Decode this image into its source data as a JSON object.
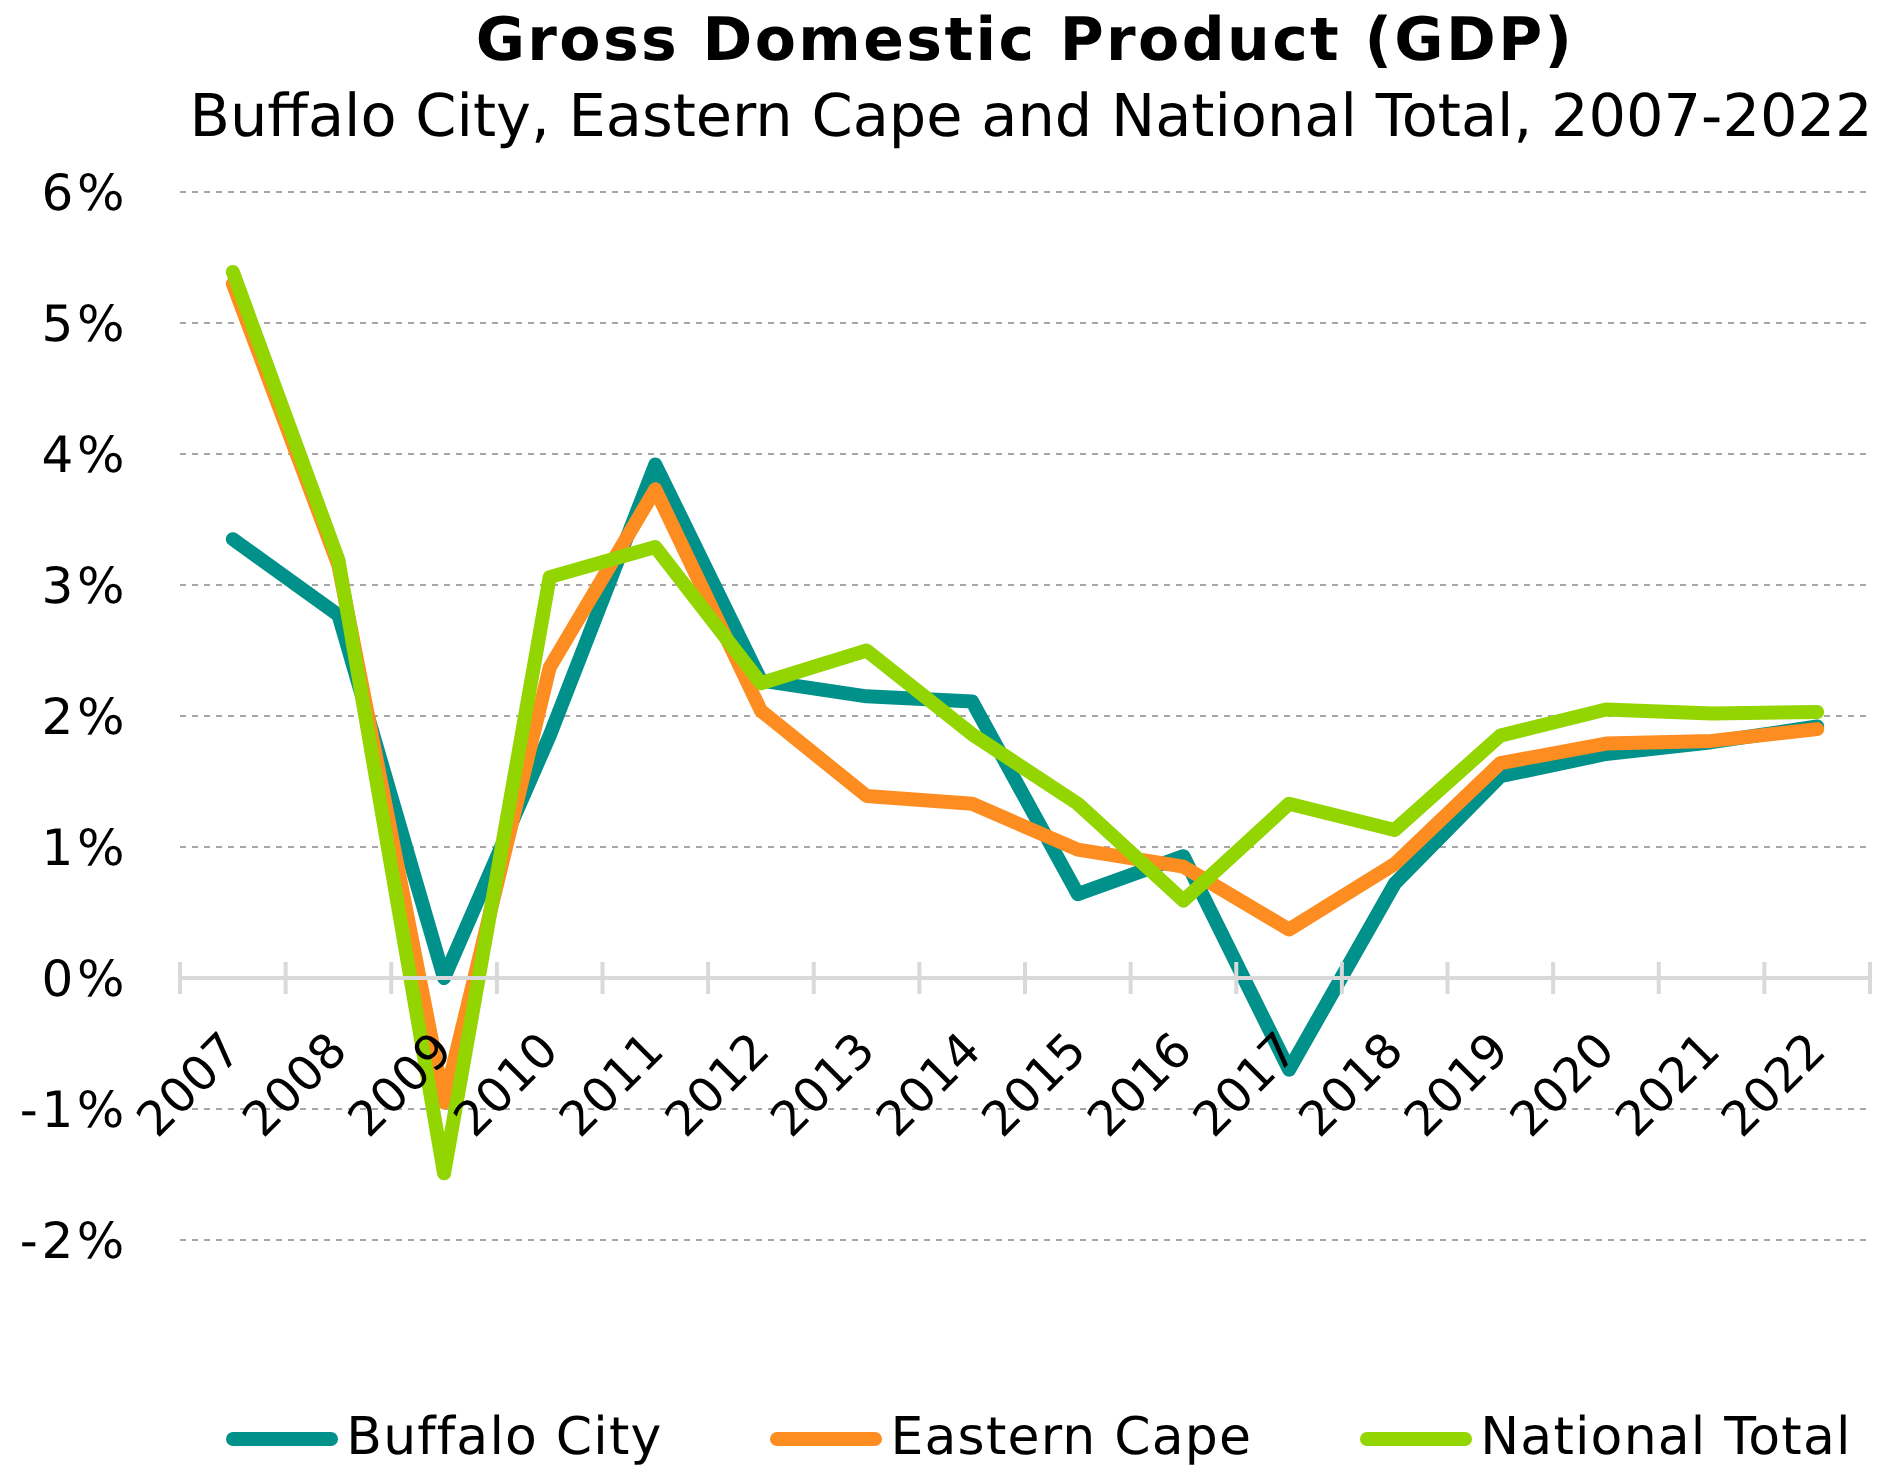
{
  "chart_data": {
    "type": "line",
    "title": "Gross Domestic Product (GDP)",
    "subtitle": "Buffalo City, Eastern Cape and National Total, 2007-2022",
    "categories": [
      "2007",
      "2008",
      "2009",
      "2010",
      "2011",
      "2012",
      "2013",
      "2014",
      "2015",
      "2016",
      "2017",
      "2018",
      "2019",
      "2020",
      "2021",
      "2022"
    ],
    "series": [
      {
        "name": "Buffalo City",
        "color": "#00918a",
        "values": [
          3.35,
          2.77,
          0.0,
          1.85,
          3.92,
          2.27,
          2.15,
          2.11,
          0.64,
          0.93,
          -0.7,
          0.72,
          1.54,
          1.71,
          1.8,
          1.92
        ]
      },
      {
        "name": "Eastern Cape",
        "color": "#fd8d20",
        "values": [
          5.3,
          3.15,
          -0.95,
          2.37,
          3.73,
          2.04,
          1.39,
          1.33,
          0.98,
          0.85,
          0.37,
          0.87,
          1.64,
          1.79,
          1.81,
          1.9
        ]
      },
      {
        "name": "National Total",
        "color": "#93d500",
        "values": [
          5.39,
          3.19,
          -1.49,
          3.06,
          3.29,
          2.25,
          2.5,
          1.86,
          1.33,
          0.59,
          1.33,
          1.13,
          1.85,
          2.05,
          2.02,
          2.03
        ]
      }
    ],
    "ylim": [
      -2,
      6
    ],
    "yticks": [
      {
        "value": -2,
        "label": "-2%"
      },
      {
        "value": -1,
        "label": "-1%"
      },
      {
        "value": 0,
        "label": "0%"
      },
      {
        "value": 1,
        "label": "1%"
      },
      {
        "value": 2,
        "label": "2%"
      },
      {
        "value": 3,
        "label": "3%"
      },
      {
        "value": 4,
        "label": "4%"
      },
      {
        "value": 5,
        "label": "5%"
      },
      {
        "value": 6,
        "label": "6%"
      }
    ],
    "grid": "y",
    "legend": "bottom",
    "marker": "none",
    "line_style": "solid"
  }
}
